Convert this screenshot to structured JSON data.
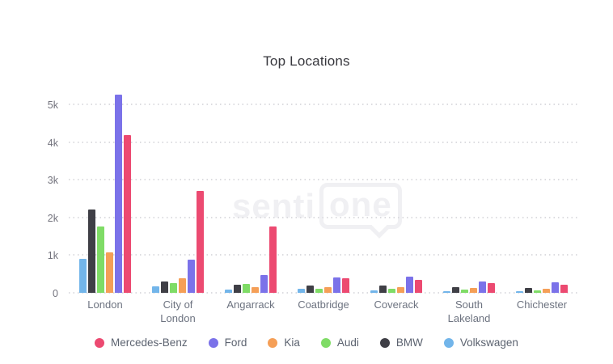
{
  "title": "Top Locations",
  "watermark": {
    "part1": "senti",
    "part2": "one"
  },
  "y_axis": {
    "tick_labels": [
      "0",
      "1k",
      "2k",
      "3k",
      "4k",
      "5k"
    ],
    "tick_values": [
      0,
      1000,
      2000,
      3000,
      4000,
      5000
    ]
  },
  "chart_data": {
    "type": "bar",
    "title": "Top Locations",
    "categories": [
      "London",
      "City of London",
      "Angarrack",
      "Coatbridge",
      "Coverack",
      "South Lakeland",
      "Chichester"
    ],
    "series": [
      {
        "name": "Mercedes-Benz",
        "color": "#EC4A71",
        "values": [
          4190,
          2700,
          1760,
          390,
          340,
          250,
          210
        ]
      },
      {
        "name": "Ford",
        "color": "#7B72E9",
        "values": [
          5260,
          870,
          480,
          410,
          420,
          310,
          270
        ]
      },
      {
        "name": "Kia",
        "color": "#F59F57",
        "values": [
          1070,
          380,
          140,
          140,
          140,
          120,
          100
        ]
      },
      {
        "name": "Audi",
        "color": "#7FDC66",
        "values": [
          1750,
          260,
          230,
          110,
          110,
          90,
          70
        ]
      },
      {
        "name": "BMW",
        "color": "#3F3F46",
        "values": [
          2210,
          310,
          210,
          200,
          190,
          160,
          130
        ]
      },
      {
        "name": "Volkswagen",
        "color": "#72B5EA",
        "values": [
          900,
          180,
          90,
          100,
          70,
          50,
          50
        ]
      }
    ],
    "ylim": [
      0,
      5400
    ],
    "grid": "dotted horizontal gridlines at each 1k",
    "legend_position": "bottom",
    "bar_display_order": "reversed vs legend (Volkswagen leftmost, Mercedes-Benz rightmost)"
  },
  "colors": {
    "gridline": "#dcdce0",
    "axis_text": "#72727c",
    "category_text": "#6d7380",
    "legend_text": "#5c6370",
    "title_text": "#37373d",
    "watermark": "#f0f0f3"
  }
}
